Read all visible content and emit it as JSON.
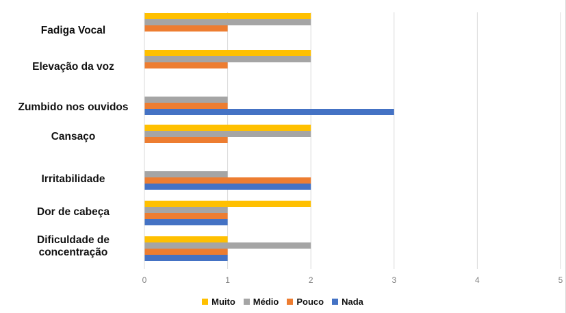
{
  "chart_data": {
    "type": "bar",
    "orientation": "horizontal",
    "categories": [
      "Fadiga Vocal",
      "Elevação da voz",
      "Zumbido nos ouvidos",
      "Cansaço",
      "Irritabilidade",
      "Dor de cabeça",
      "Dificuldade de\nconcentração"
    ],
    "series": [
      {
        "name": "Muito",
        "color": "#FFC000",
        "values": [
          2,
          2,
          0,
          2,
          0,
          2,
          1
        ]
      },
      {
        "name": "Médio",
        "color": "#A5A5A5",
        "values": [
          2,
          2,
          1,
          2,
          1,
          1,
          2
        ]
      },
      {
        "name": "Pouco",
        "color": "#ED7D31",
        "values": [
          1,
          1,
          1,
          1,
          2,
          1,
          1
        ]
      },
      {
        "name": "Nada",
        "color": "#4472C4",
        "values": [
          0,
          0,
          3,
          0,
          2,
          1,
          1
        ]
      }
    ],
    "xlim": [
      0,
      5
    ],
    "xticks": [
      "0",
      "1",
      "2",
      "3",
      "4",
      "5"
    ],
    "grid": "vertical",
    "legend_position": "bottom"
  }
}
